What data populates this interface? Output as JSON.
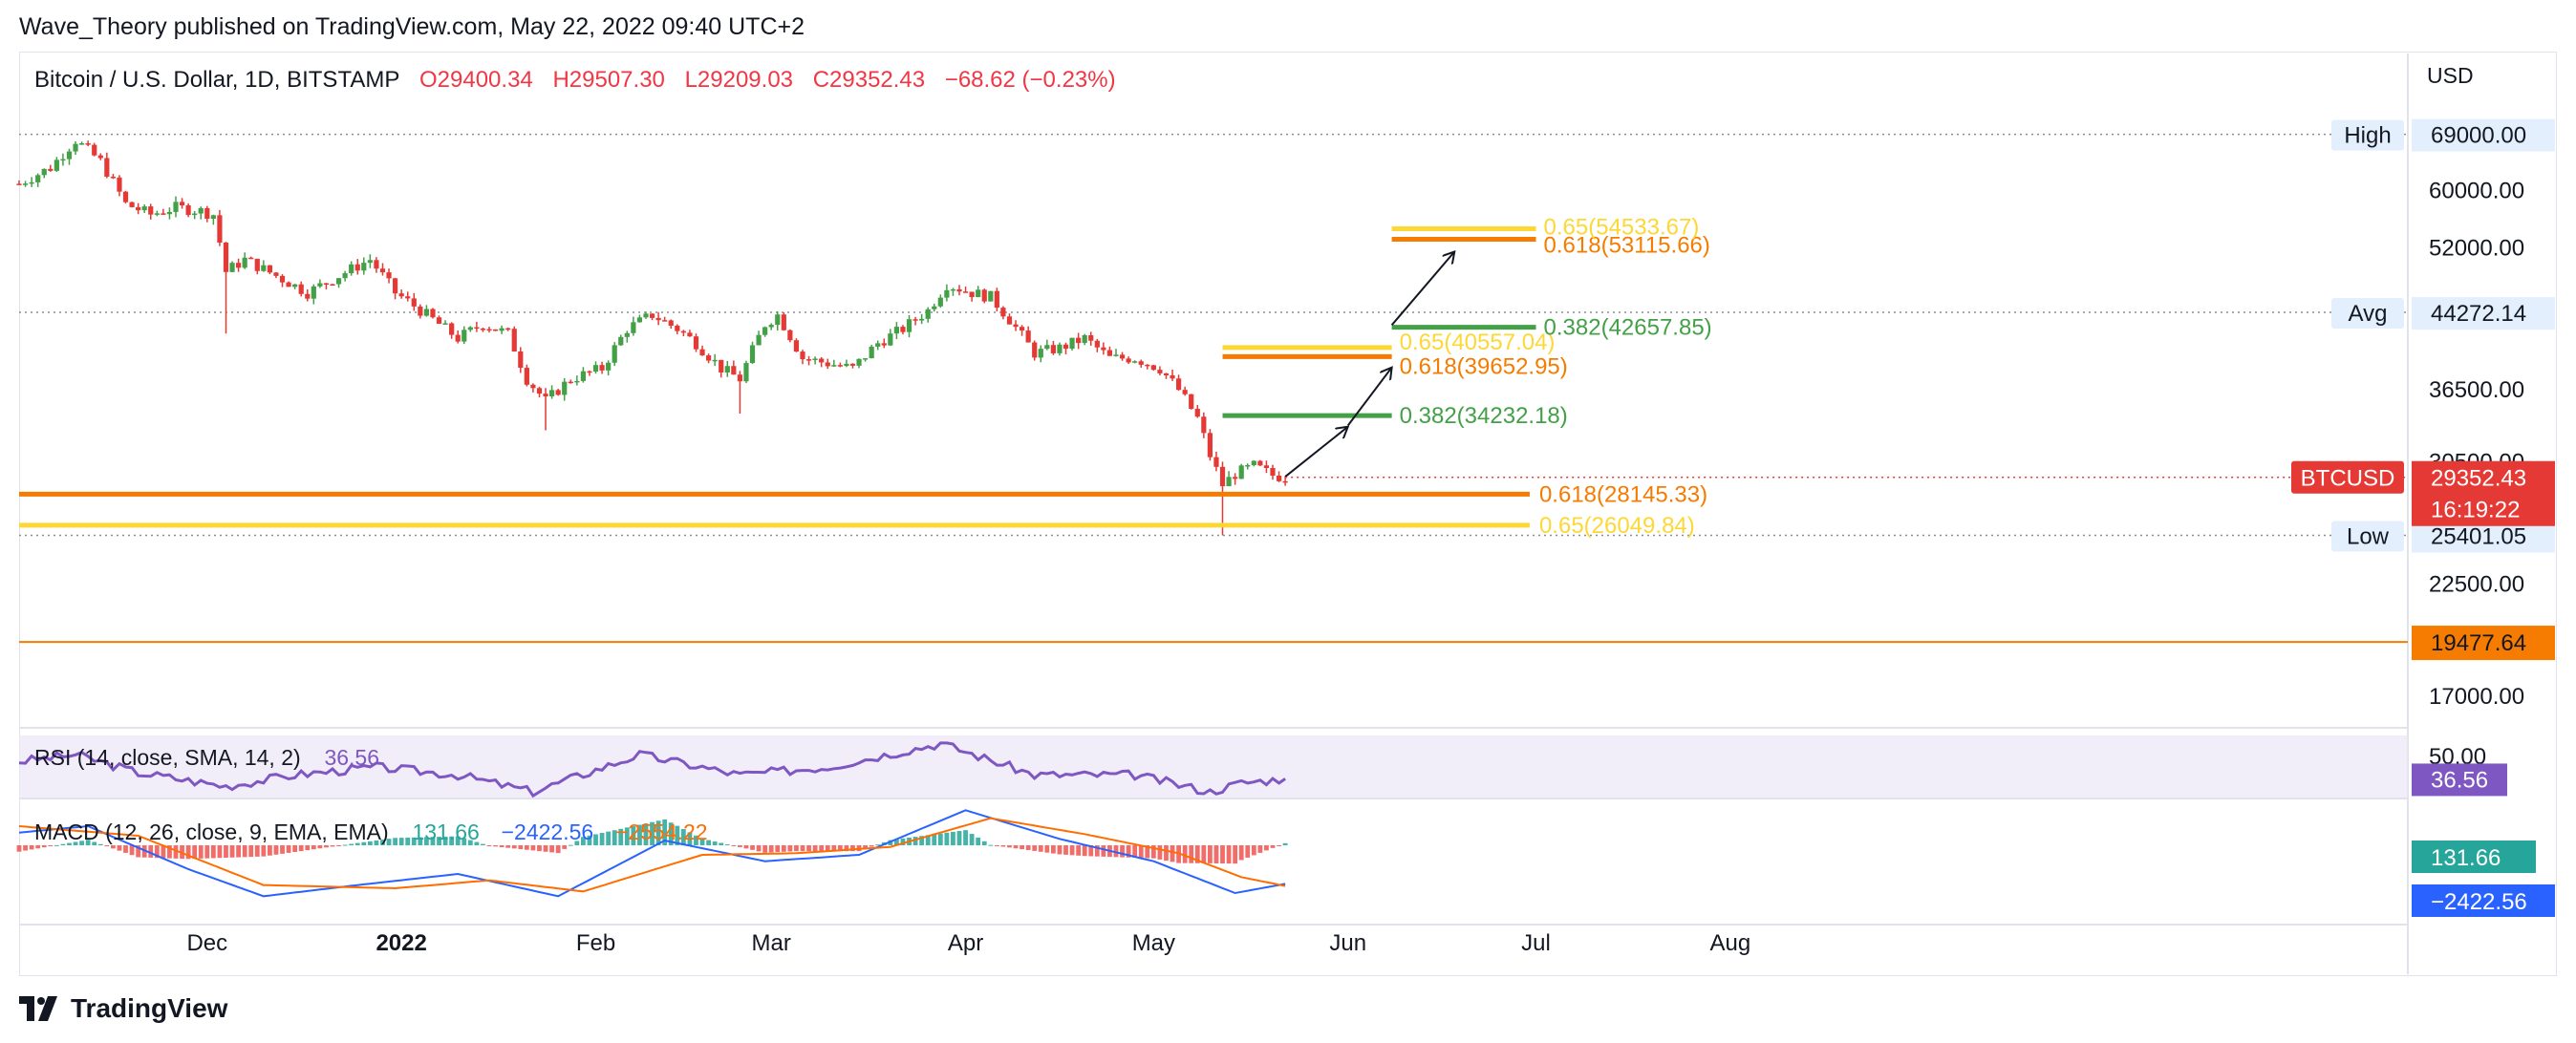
{
  "header": {
    "published": "Wave_Theory published on TradingView.com, May 22, 2022 09:40 UTC+2"
  },
  "legend": {
    "symbol": "Bitcoin / U.S. Dollar, 1D, BITSTAMP",
    "open": "O29400.34",
    "high": "H29507.30",
    "low": "L29209.03",
    "close": "C29352.43",
    "change": "−68.62 (−0.23%)"
  },
  "axis": {
    "currency": "USD"
  },
  "brand": {
    "name": "TradingView"
  },
  "colors": {
    "up": "#26a69a",
    "down": "#ef5350",
    "green": "#43a047",
    "red": "#e53935",
    "orange": "#f57c00",
    "yellow": "#fdd835",
    "purple": "#7e57c2",
    "blue": "#2962ff",
    "macd_signal": "#ff6d00"
  },
  "chart_data": {
    "type": "candlestick",
    "x_labels": [
      {
        "label": "Dec",
        "date": "2021-12-01"
      },
      {
        "label": "2022",
        "date": "2022-01-01"
      },
      {
        "label": "Feb",
        "date": "2022-02-01"
      },
      {
        "label": "Mar",
        "date": "2022-03-01"
      },
      {
        "label": "Apr",
        "date": "2022-04-01"
      },
      {
        "label": "May",
        "date": "2022-05-01"
      },
      {
        "label": "Jun",
        "date": "2022-06-01"
      },
      {
        "label": "Jul",
        "date": "2022-07-01"
      },
      {
        "label": "Aug",
        "date": "2022-08-01"
      }
    ],
    "y_ticks": [
      "60000.00",
      "52000.00",
      "36500.00",
      "30500.00",
      "22500.00",
      "17000.00"
    ],
    "y_scale": "log",
    "y_range": [
      15800,
      76000
    ],
    "price_path": [
      [
        "2021-11-01",
        61000
      ],
      [
        "2021-11-06",
        63500
      ],
      [
        "2021-11-10",
        68000
      ],
      [
        "2021-11-14",
        64500
      ],
      [
        "2021-11-18",
        58000
      ],
      [
        "2021-11-22",
        56500
      ],
      [
        "2021-11-26",
        57500
      ],
      [
        "2021-11-30",
        57000
      ],
      [
        "2021-12-02",
        56500
      ],
      [
        "2021-12-04",
        49000
      ],
      [
        "2021-12-07",
        50500
      ],
      [
        "2021-12-12",
        48500
      ],
      [
        "2021-12-17",
        46500
      ],
      [
        "2021-12-22",
        48500
      ],
      [
        "2021-12-27",
        50500
      ],
      [
        "2021-12-31",
        46500
      ],
      [
        "2022-01-05",
        44000
      ],
      [
        "2022-01-10",
        41500
      ],
      [
        "2022-01-14",
        43000
      ],
      [
        "2022-01-18",
        42000
      ],
      [
        "2022-01-21",
        37500
      ],
      [
        "2022-01-24",
        35500
      ],
      [
        "2022-01-28",
        37500
      ],
      [
        "2022-02-02",
        38500
      ],
      [
        "2022-02-06",
        42500
      ],
      [
        "2022-02-10",
        44000
      ],
      [
        "2022-02-14",
        42500
      ],
      [
        "2022-02-17",
        41000
      ],
      [
        "2022-02-21",
        38500
      ],
      [
        "2022-02-24",
        37500
      ],
      [
        "2022-02-28",
        43000
      ],
      [
        "2022-03-02",
        44000
      ],
      [
        "2022-03-06",
        39500
      ],
      [
        "2022-03-10",
        39000
      ],
      [
        "2022-03-14",
        38500
      ],
      [
        "2022-03-18",
        41000
      ],
      [
        "2022-03-22",
        42500
      ],
      [
        "2022-03-26",
        44500
      ],
      [
        "2022-03-29",
        47500
      ],
      [
        "2022-04-02",
        46500
      ],
      [
        "2022-04-05",
        46000
      ],
      [
        "2022-04-08",
        43500
      ],
      [
        "2022-04-12",
        40000
      ],
      [
        "2022-04-16",
        40500
      ],
      [
        "2022-04-20",
        41500
      ],
      [
        "2022-04-24",
        39500
      ],
      [
        "2022-04-28",
        39500
      ],
      [
        "2022-05-02",
        38500
      ],
      [
        "2022-05-05",
        36500
      ],
      [
        "2022-05-08",
        34000
      ],
      [
        "2022-05-10",
        31000
      ],
      [
        "2022-05-12",
        28800
      ],
      [
        "2022-05-14",
        29600
      ],
      [
        "2022-05-17",
        30200
      ],
      [
        "2022-05-20",
        29500
      ],
      [
        "2022-05-22",
        29352
      ]
    ],
    "candles_note_dates": {
      "start": "2021-11-01",
      "end": "2022-05-22"
    },
    "wicks": [
      {
        "date": "2021-12-04",
        "low": 42000
      },
      {
        "date": "2022-01-24",
        "low": 33000
      },
      {
        "date": "2022-02-24",
        "low": 34400
      },
      {
        "date": "2022-05-12",
        "low": 25401
      }
    ],
    "horizontal_lines": [
      {
        "side_label": "High",
        "value": 69000,
        "axis_label": "69000.00"
      },
      {
        "side_label": "Avg",
        "value": 44272.14,
        "axis_label": "44272.14"
      },
      {
        "side_label": "Low",
        "value": 25401.05,
        "axis_label": "25401.05"
      },
      {
        "value": 19477.64,
        "axis_label": "19477.64"
      }
    ],
    "fib_levels": [
      {
        "label": "0.618(28145.33)",
        "value": 28145.33,
        "color": "#f57c00",
        "from": "2021-11-01",
        "to": "2022-06-30"
      },
      {
        "label": "0.65(26049.84)",
        "value": 26049.84,
        "color": "#fdd835",
        "from": "2021-11-01",
        "to": "2022-06-30"
      },
      {
        "label": "0.382(34232.18)",
        "value": 34232.18,
        "color": "#43a047",
        "from": "2022-05-12",
        "to": "2022-06-08"
      },
      {
        "label": "0.618(39652.95)",
        "value": 39652.95,
        "color": "#f57c00",
        "from": "2022-05-12",
        "to": "2022-06-08"
      },
      {
        "label": "0.65(40557.04)",
        "value": 40557.04,
        "color": "#fdd835",
        "from": "2022-05-12",
        "to": "2022-06-08"
      },
      {
        "label": "0.382(42657.85)",
        "value": 42657.85,
        "color": "#43a047",
        "from": "2022-06-08",
        "to": "2022-07-01"
      },
      {
        "label": "0.618(53115.66)",
        "value": 53115.66,
        "color": "#f57c00",
        "from": "2022-06-08",
        "to": "2022-07-01"
      },
      {
        "label": "0.65(54533.67)",
        "value": 54533.67,
        "color": "#fdd835",
        "from": "2022-06-08",
        "to": "2022-07-01"
      }
    ],
    "projection_arrows": [
      [
        [
          "2022-05-22",
          29400
        ],
        [
          "2022-06-01",
          33300
        ]
      ],
      [
        [
          "2022-06-01",
          33400
        ],
        [
          "2022-06-08",
          38600
        ]
      ],
      [
        [
          "2022-06-08",
          42900
        ],
        [
          "2022-06-18",
          51500
        ]
      ]
    ],
    "price_badge": {
      "symbol": "BTCUSD",
      "price": "29352.43",
      "countdown": "16:19:22"
    },
    "rsi": {
      "legend": "RSI (14, close, SMA, 14, 2)",
      "value": "36.56",
      "axis_tick": "50.00",
      "path": [
        [
          "2021-11-01",
          52
        ],
        [
          "2021-11-10",
          58
        ],
        [
          "2021-11-20",
          42
        ],
        [
          "2021-12-04",
          30
        ],
        [
          "2021-12-15",
          40
        ],
        [
          "2021-12-28",
          47
        ],
        [
          "2022-01-10",
          40
        ],
        [
          "2022-01-22",
          25
        ],
        [
          "2022-02-08",
          58
        ],
        [
          "2022-02-24",
          40
        ],
        [
          "2022-03-10",
          47
        ],
        [
          "2022-03-28",
          68
        ],
        [
          "2022-04-12",
          40
        ],
        [
          "2022-04-28",
          40
        ],
        [
          "2022-05-10",
          25
        ],
        [
          "2022-05-15",
          33
        ],
        [
          "2022-05-22",
          36.56
        ]
      ]
    },
    "macd": {
      "legend": "MACD (12, 26, close, 9, EMA, EMA)",
      "hist": "131.66",
      "macd": "−2422.56",
      "signal": "−2554.22",
      "macd_path": [
        [
          "2021-11-01",
          800
        ],
        [
          "2021-11-12",
          1200
        ],
        [
          "2021-11-28",
          -1500
        ],
        [
          "2021-12-10",
          -3200
        ],
        [
          "2021-12-25",
          -2500
        ],
        [
          "2022-01-10",
          -1800
        ],
        [
          "2022-01-26",
          -3200
        ],
        [
          "2022-02-12",
          300
        ],
        [
          "2022-02-28",
          -1000
        ],
        [
          "2022-03-15",
          -600
        ],
        [
          "2022-04-01",
          2200
        ],
        [
          "2022-04-16",
          400
        ],
        [
          "2022-05-01",
          -1000
        ],
        [
          "2022-05-14",
          -3000
        ],
        [
          "2022-05-22",
          -2422.56
        ]
      ],
      "signal_path": [
        [
          "2021-11-01",
          1200
        ],
        [
          "2021-11-20",
          600
        ],
        [
          "2021-12-10",
          -2500
        ],
        [
          "2021-12-31",
          -2700
        ],
        [
          "2022-01-15",
          -2200
        ],
        [
          "2022-01-30",
          -2900
        ],
        [
          "2022-02-18",
          -600
        ],
        [
          "2022-03-05",
          -500
        ],
        [
          "2022-03-20",
          -100
        ],
        [
          "2022-04-05",
          1700
        ],
        [
          "2022-04-20",
          700
        ],
        [
          "2022-05-05",
          -500
        ],
        [
          "2022-05-15",
          -2000
        ],
        [
          "2022-05-22",
          -2554.22
        ]
      ]
    }
  }
}
